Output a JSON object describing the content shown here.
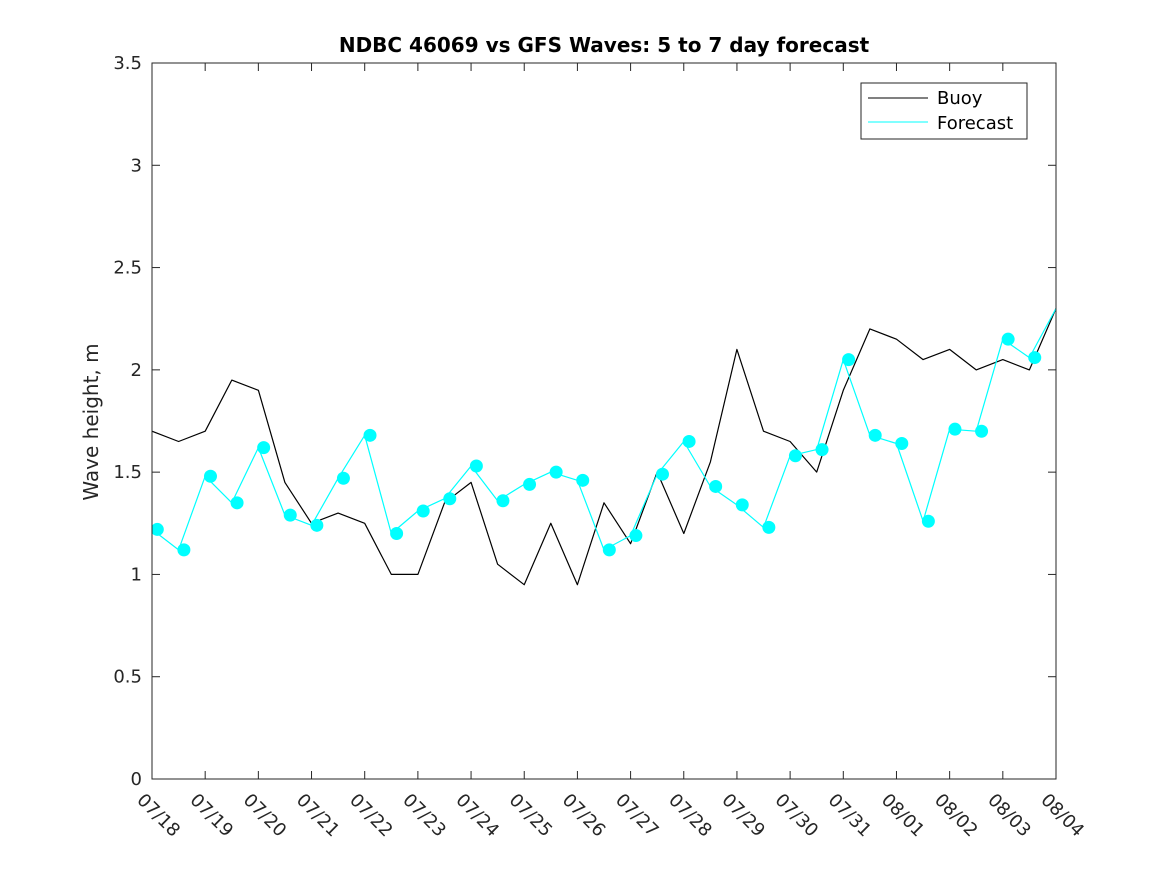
{
  "chart_data": {
    "type": "line",
    "title": "NDBC 46069 vs GFS Waves: 5 to 7 day forecast",
    "xlabel": "",
    "ylabel": "Wave height, m",
    "xlim": [
      "07/18",
      "08/04"
    ],
    "ylim": [
      0,
      3.5
    ],
    "x_ticks": [
      "07/18",
      "07/19",
      "07/20",
      "07/21",
      "07/22",
      "07/23",
      "07/24",
      "07/25",
      "07/26",
      "07/27",
      "07/28",
      "07/29",
      "07/30",
      "07/31",
      "08/01",
      "08/02",
      "08/03",
      "08/04"
    ],
    "y_ticks": [
      "0",
      "0.5",
      "1",
      "1.5",
      "2",
      "2.5",
      "3",
      "3.5"
    ],
    "grid": false,
    "legend": {
      "position": "top-right",
      "entries": [
        {
          "name": "Buoy",
          "color": "#000000"
        },
        {
          "name": "Forecast",
          "color": "#00ffff"
        }
      ]
    },
    "series": [
      {
        "name": "Buoy",
        "color": "#000000",
        "x": [
          0,
          0.5,
          1,
          1.5,
          2,
          2.5,
          3,
          3.5,
          4,
          4.5,
          5,
          5.5,
          6,
          6.5,
          7,
          7.5,
          8,
          8.5,
          9,
          9.5,
          10,
          10.5,
          11,
          11.5,
          12,
          12.5,
          13,
          13.5,
          14,
          14.5,
          15,
          15.5,
          16,
          16.5,
          17
        ],
        "y": [
          1.7,
          1.65,
          1.7,
          1.95,
          1.9,
          1.45,
          1.25,
          1.3,
          1.25,
          1.0,
          1.0,
          1.35,
          1.45,
          1.05,
          0.95,
          1.25,
          0.95,
          1.35,
          1.15,
          1.5,
          1.2,
          1.55,
          2.1,
          1.7,
          1.65,
          1.5,
          1.9,
          2.2,
          2.15,
          2.05,
          2.1,
          2.0,
          2.05,
          2.0,
          2.3
        ],
        "markers": []
      },
      {
        "name": "Forecast",
        "color": "#00ffff",
        "x": [
          0,
          0.5,
          1,
          1.5,
          2,
          2.5,
          3,
          3.5,
          4,
          4.5,
          5,
          5.5,
          6,
          6.5,
          7,
          7.5,
          8,
          8.5,
          9,
          9.5,
          10,
          10.5,
          11,
          11.5,
          12,
          12.5,
          13,
          13.5,
          14,
          14.5,
          15,
          15.5,
          16,
          16.5,
          17
        ],
        "y": [
          1.22,
          1.12,
          1.48,
          1.35,
          1.62,
          1.29,
          1.24,
          1.47,
          1.68,
          1.2,
          1.31,
          1.37,
          1.53,
          1.36,
          1.44,
          1.5,
          1.46,
          1.12,
          1.19,
          1.49,
          1.65,
          1.43,
          1.34,
          1.23,
          1.58,
          1.61,
          2.05,
          1.68,
          1.64,
          1.26,
          1.71,
          1.7,
          2.15,
          2.06,
          2.3
        ],
        "markers": [
          {
            "x": 0.1,
            "y": 1.22
          },
          {
            "x": 0.6,
            "y": 1.12
          },
          {
            "x": 1.1,
            "y": 1.48
          },
          {
            "x": 1.6,
            "y": 1.35
          },
          {
            "x": 2.1,
            "y": 1.62
          },
          {
            "x": 2.6,
            "y": 1.29
          },
          {
            "x": 3.1,
            "y": 1.24
          },
          {
            "x": 3.6,
            "y": 1.47
          },
          {
            "x": 4.1,
            "y": 1.68
          },
          {
            "x": 4.6,
            "y": 1.2
          },
          {
            "x": 5.1,
            "y": 1.31
          },
          {
            "x": 5.6,
            "y": 1.37
          },
          {
            "x": 6.1,
            "y": 1.53
          },
          {
            "x": 6.6,
            "y": 1.36
          },
          {
            "x": 7.1,
            "y": 1.44
          },
          {
            "x": 7.6,
            "y": 1.5
          },
          {
            "x": 8.1,
            "y": 1.46
          },
          {
            "x": 8.6,
            "y": 1.12
          },
          {
            "x": 9.1,
            "y": 1.19
          },
          {
            "x": 9.6,
            "y": 1.49
          },
          {
            "x": 10.1,
            "y": 1.65
          },
          {
            "x": 10.6,
            "y": 1.43
          },
          {
            "x": 11.1,
            "y": 1.34
          },
          {
            "x": 11.6,
            "y": 1.23
          },
          {
            "x": 12.1,
            "y": 1.58
          },
          {
            "x": 12.6,
            "y": 1.61
          },
          {
            "x": 13.1,
            "y": 2.05
          },
          {
            "x": 13.6,
            "y": 1.68
          },
          {
            "x": 14.1,
            "y": 1.64
          },
          {
            "x": 14.6,
            "y": 1.26
          },
          {
            "x": 15.1,
            "y": 1.71
          },
          {
            "x": 15.6,
            "y": 1.7
          },
          {
            "x": 16.1,
            "y": 2.15
          },
          {
            "x": 16.6,
            "y": 2.06
          }
        ]
      }
    ]
  }
}
